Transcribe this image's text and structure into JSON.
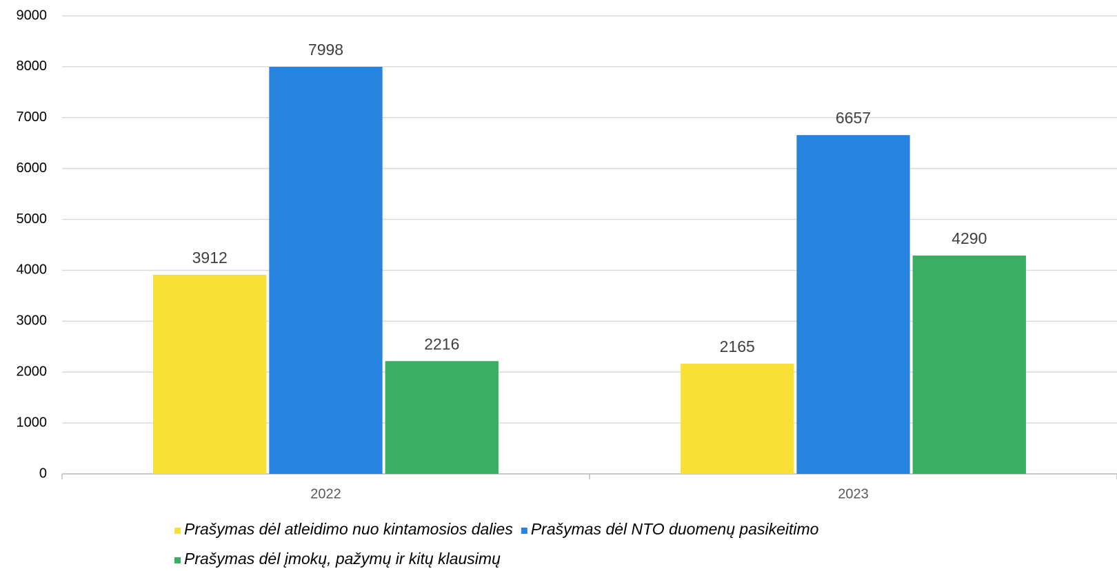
{
  "chart_data": {
    "type": "bar",
    "categories": [
      "2022",
      "2023"
    ],
    "series": [
      {
        "name": "Prašymas dėl atleidimo nuo kintamosios dalies",
        "color": "#f9e036",
        "values": [
          3912,
          2165
        ]
      },
      {
        "name": "Prašymas dėl NTO duomenų pasikeitimo",
        "color": "#2784de",
        "values": [
          7998,
          6657
        ]
      },
      {
        "name": "Prašymas dėl įmokų, pažymų ir kitų klausimų",
        "color": "#3aae62",
        "values": [
          2216,
          4290
        ]
      }
    ],
    "ylim": [
      0,
      9000
    ],
    "yticks": [
      0,
      1000,
      2000,
      3000,
      4000,
      5000,
      6000,
      7000,
      8000,
      9000
    ],
    "grid": true,
    "legend": "bottom"
  }
}
